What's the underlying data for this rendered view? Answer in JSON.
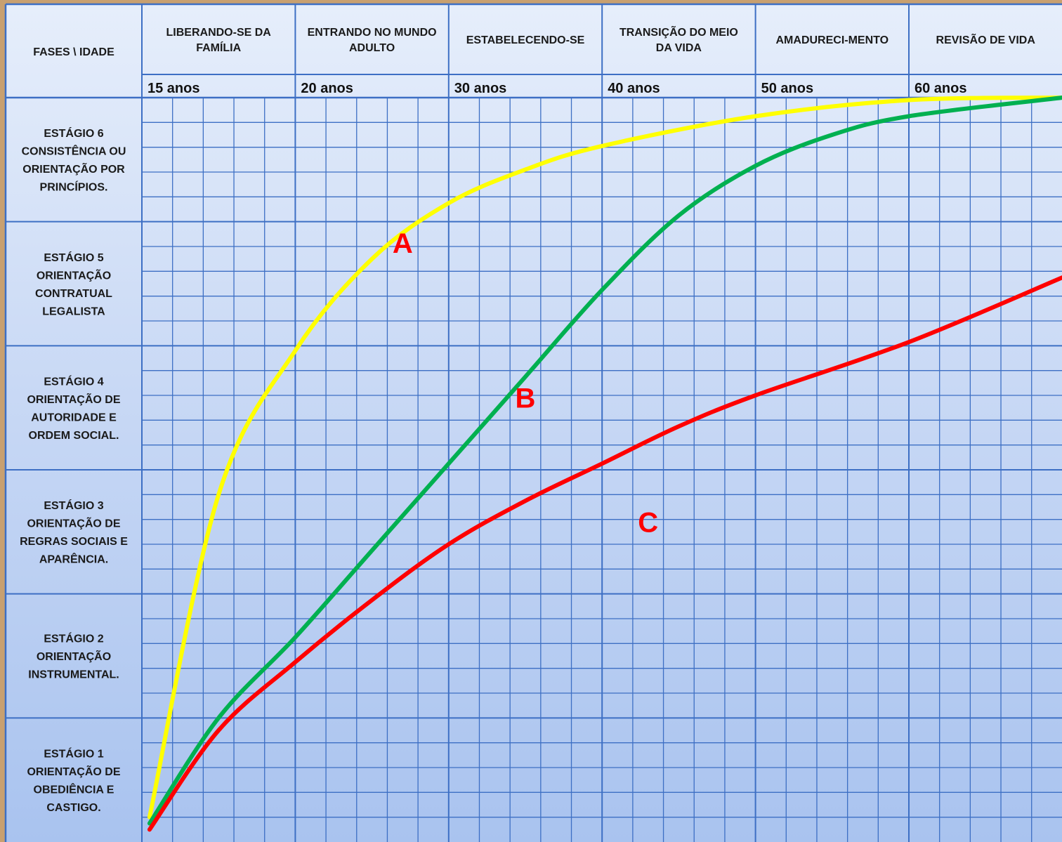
{
  "chart_data": {
    "type": "line",
    "corner_label": "FASES \\ IDADE",
    "phases": [
      "LIBERANDO-SE DA FAMÍLIA",
      "ENTRANDO  NO MUNDO ADULTO",
      "ESTABELECENDO-SE",
      "TRANSIÇÃO  DO MEIO DA VIDA",
      "AMADURECI-MENTO",
      "REVISÃO DE VIDA"
    ],
    "age_ticks": [
      "15 anos",
      "20 anos",
      "30 anos",
      "40 anos",
      "50 anos",
      "60 anos"
    ],
    "stages": [
      "ESTÁGIO 6 CONSISTÊNCIA OU ORIENTAÇÃO POR PRINCÍPIOS.",
      "ESTÁGIO 5 ORIENTAÇÃO CONTRATUAL LEGALISTA",
      "ESTÁGIO 4 ORIENTAÇÃO DE AUTORIDADE E ORDEM SOCIAL.",
      "ESTÁGIO 3 ORIENTAÇÃO DE REGRAS SOCIAIS E APARÊNCIA.",
      "ESTÁGIO 2 ORIENTAÇÃO INSTRUMENTAL.",
      "ESTÁGIO 1 ORIENTAÇÃO DE OBEDIÊNCIA E CASTIGO."
    ],
    "x_scale": "phase columns starting at 15 anos (0 = 15 anos, 1 = 20 anos, 2 = 30 anos, 3 = 40 anos, 4 = 50 anos, 5 = 60 anos)",
    "y_scale": "stage level (0 = bottom of ESTÁGIO 1, 6 = top of ESTÁGIO 6)",
    "xlim": [
      0,
      6
    ],
    "ylim": [
      0,
      6
    ],
    "grid": true,
    "series": [
      {
        "name": "A",
        "color": "#ffff00",
        "x": [
          0.05,
          0.5,
          1.0,
          1.5,
          2.0,
          2.5,
          3.0,
          4.0,
          5.0,
          6.0
        ],
        "y": [
          0.2,
          2.8,
          3.96,
          4.7,
          5.15,
          5.42,
          5.61,
          5.85,
          5.98,
          6.0
        ]
      },
      {
        "name": "B",
        "color": "#00b050",
        "x": [
          0.05,
          0.5,
          1.0,
          1.5,
          2.0,
          2.5,
          3.0,
          3.5,
          4.0,
          4.5,
          5.0,
          6.0
        ],
        "y": [
          0.15,
          1.0,
          1.65,
          2.35,
          3.05,
          3.75,
          4.45,
          5.05,
          5.45,
          5.7,
          5.85,
          6.0
        ]
      },
      {
        "name": "C",
        "color": "#ff0000",
        "x": [
          0.05,
          0.5,
          1.0,
          1.5,
          2.0,
          2.5,
          3.0,
          3.5,
          4.0,
          5.0,
          6.0
        ],
        "y": [
          0.1,
          0.9,
          1.45,
          1.95,
          2.4,
          2.75,
          3.05,
          3.35,
          3.6,
          4.03,
          4.55
        ]
      }
    ],
    "annotations": [
      {
        "text": "A",
        "color": "#ff0000",
        "x": 1.7,
        "y": 4.75
      },
      {
        "text": "B",
        "color": "#ff0000",
        "x": 2.5,
        "y": 3.5
      },
      {
        "text": "C",
        "color": "#ff0000",
        "x": 3.3,
        "y": 2.5
      }
    ]
  }
}
